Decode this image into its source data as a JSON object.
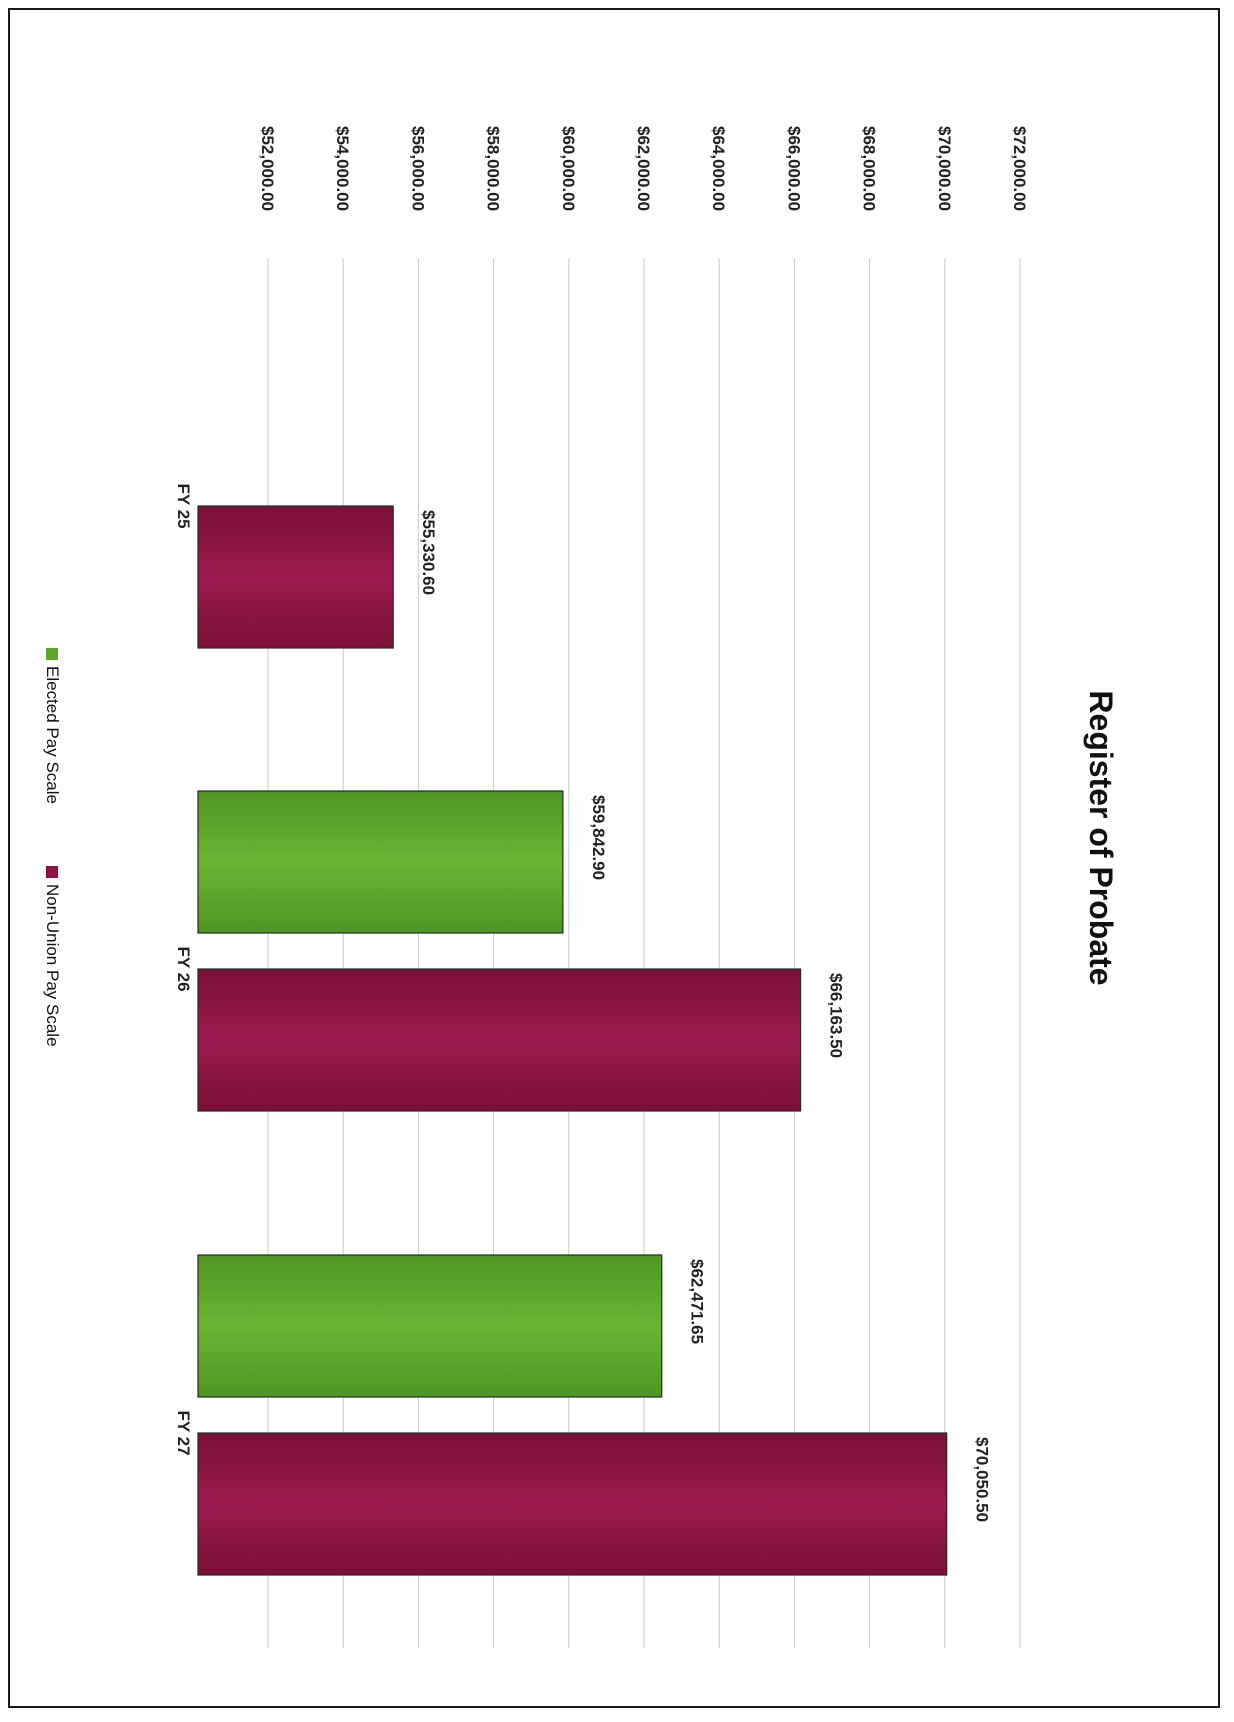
{
  "chart_data": {
    "type": "bar",
    "title": "Register of Probate",
    "categories": [
      "FY 25",
      "FY 26",
      "FY 27"
    ],
    "series": [
      {
        "name": "Elected Pay Scale",
        "color": "#5fa52a",
        "values": [
          null,
          59842.9,
          62471.65
        ]
      },
      {
        "name": "Non-Union Pay Scale",
        "color": "#8c1442",
        "values": [
          55330.6,
          66163.5,
          70050.5
        ]
      }
    ],
    "data_labels": {
      "Elected Pay Scale": [
        null,
        "$59,842.90",
        "$62,471.65"
      ],
      "Non-Union Pay Scale": [
        "$55,330.60",
        "$66,163.50",
        "$70,050.50"
      ]
    },
    "ylim": [
      52000,
      72000
    ],
    "y_ticks": [
      52000,
      54000,
      56000,
      58000,
      60000,
      62000,
      64000,
      66000,
      68000,
      70000,
      72000
    ],
    "y_tick_labels": [
      "$52,000.00",
      "$54,000.00",
      "$56,000.00",
      "$58,000.00",
      "$60,000.00",
      "$62,000.00",
      "$64,000.00",
      "$66,000.00",
      "$68,000.00",
      "$70,000.00",
      "$72,000.00"
    ],
    "orientation": "page rotated 90 degrees clockwise",
    "grid": true,
    "legend_position": "bottom"
  }
}
